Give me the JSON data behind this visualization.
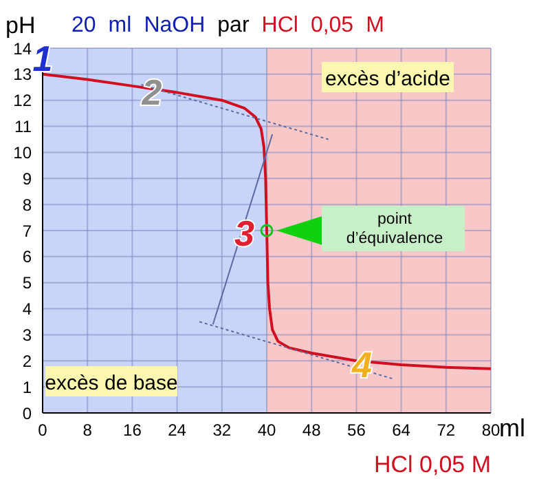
{
  "chart_data": {
    "type": "line",
    "title": "20 ml NaOH par HCl 0,05 M",
    "xlabel": "ml",
    "ylabel": "pH",
    "xlim": [
      0,
      80
    ],
    "xticks": [
      0,
      8,
      16,
      24,
      32,
      40,
      48,
      56,
      64,
      72,
      80
    ],
    "ylim": [
      0,
      14
    ],
    "yticks": [
      0,
      1,
      2,
      3,
      4,
      5,
      6,
      7,
      8,
      9,
      10,
      11,
      12,
      13,
      14
    ],
    "grid": true,
    "legend": false,
    "marker": "none",
    "series": [
      {
        "color": "#d01020",
        "x": [
          0,
          8,
          16,
          24,
          32,
          36,
          38,
          39,
          39.5,
          39.8,
          40,
          40.2,
          40.5,
          41,
          42,
          44,
          48,
          56,
          64,
          72,
          80
        ],
        "values": [
          13,
          12.8,
          12.55,
          12.3,
          12,
          11.7,
          11.35,
          10.9,
          10.2,
          9,
          7,
          5,
          4,
          3.2,
          2.75,
          2.5,
          2.3,
          2,
          1.85,
          1.75,
          1.7
        ]
      },
      {
        "type": "line",
        "line_style": "dotted",
        "color": "#5a6aa0",
        "x": [
          17.6,
          51
        ],
        "values": [
          12.6,
          10.5
        ]
      },
      {
        "type": "line",
        "line_style": "dotted",
        "color": "#5a6aa0",
        "x": [
          28,
          62.7
        ],
        "values": [
          3.5,
          1.3
        ]
      },
      {
        "type": "line",
        "line_style": "solid",
        "color": "#5a6aa0",
        "x": [
          30.4,
          41
        ],
        "values": [
          3.4,
          10.7
        ]
      },
      {
        "type": "scatter",
        "marker": "circle",
        "color": "#20c020",
        "x": [
          40
        ],
        "values": [
          7
        ]
      }
    ],
    "bands": [
      {
        "axis": "x",
        "from": 0,
        "to": 40,
        "label": "excès de base",
        "color": "#c8d4f8"
      },
      {
        "axis": "x",
        "from": 40,
        "to": 80,
        "label": "excès d’acide",
        "color": "#f8c8c8"
      }
    ],
    "annotations": [
      "point d’équivalence",
      {
        "text": "1",
        "x": 0,
        "y": 13.6
      },
      {
        "text": "2",
        "x": 19.5,
        "y": 12.3
      },
      {
        "text": "3",
        "x": 36,
        "y": 6.9
      },
      {
        "text": "4",
        "x": 57,
        "y": 1.85
      },
      "HCl 0,05 M"
    ]
  }
}
